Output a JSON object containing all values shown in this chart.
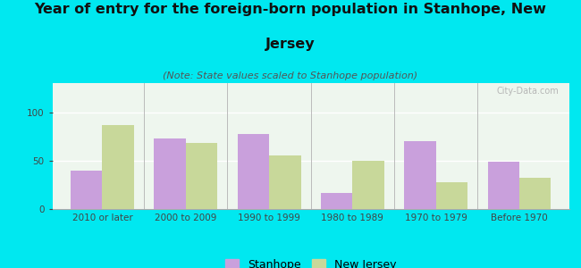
{
  "title_line1": "Year of entry for the foreign-born population in Stanhope, New",
  "title_line2": "Jersey",
  "subtitle": "(Note: State values scaled to Stanhope population)",
  "categories": [
    "2010 or later",
    "2000 to 2009",
    "1990 to 1999",
    "1980 to 1989",
    "1970 to 1979",
    "Before 1970"
  ],
  "stanhope_values": [
    40,
    73,
    77,
    17,
    70,
    49
  ],
  "nj_values": [
    87,
    68,
    55,
    50,
    28,
    32
  ],
  "stanhope_color": "#c9a0dc",
  "nj_color": "#c8d89a",
  "background_color": "#00e8f0",
  "plot_bg_color": "#eef6ee",
  "ylim": [
    0,
    130
  ],
  "yticks": [
    0,
    50,
    100
  ],
  "bar_width": 0.38,
  "legend_labels": [
    "Stanhope",
    "New Jersey"
  ],
  "title_fontsize": 11.5,
  "subtitle_fontsize": 8,
  "tick_fontsize": 7.5,
  "legend_fontsize": 9
}
